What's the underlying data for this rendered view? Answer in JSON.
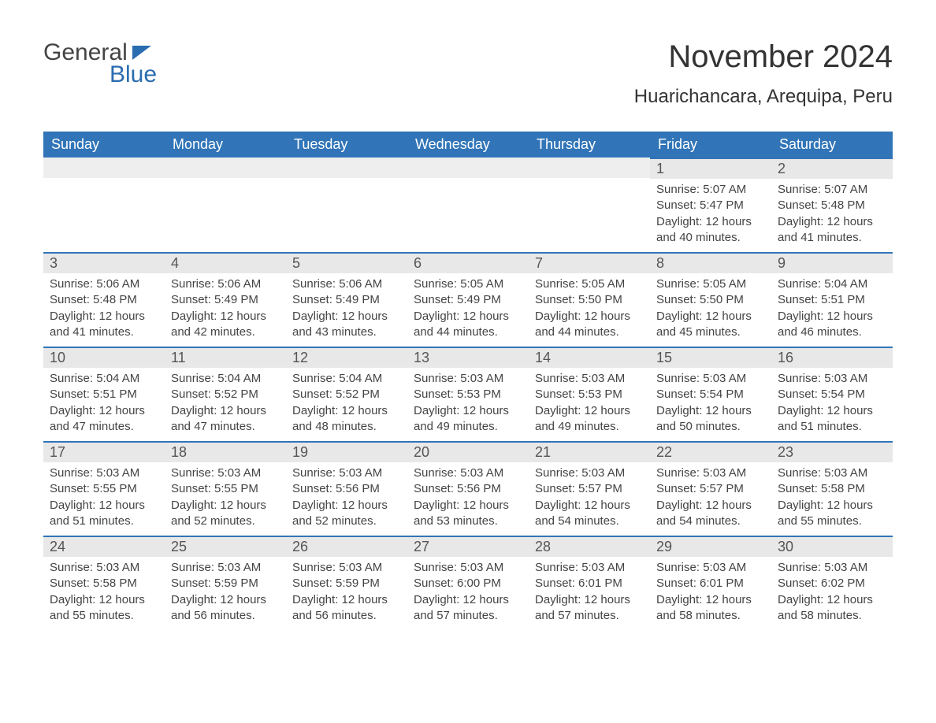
{
  "logo": {
    "text_general": "General",
    "text_blue": "Blue"
  },
  "title": "November 2024",
  "location": "Huarichancara, Arequipa, Peru",
  "colors": {
    "header_bg": "#3175b8",
    "header_text": "#ffffff",
    "day_bar_bg": "#e8e8e8",
    "day_bar_border": "#3175b8",
    "body_text": "#444444",
    "logo_blue": "#2a6cb0"
  },
  "weekdays": [
    "Sunday",
    "Monday",
    "Tuesday",
    "Wednesday",
    "Thursday",
    "Friday",
    "Saturday"
  ],
  "calendar": {
    "type": "month-grid",
    "columns": 7,
    "rows": 5,
    "weeks": [
      [
        {
          "day": null
        },
        {
          "day": null
        },
        {
          "day": null
        },
        {
          "day": null
        },
        {
          "day": null
        },
        {
          "day": "1",
          "sunrise": "Sunrise: 5:07 AM",
          "sunset": "Sunset: 5:47 PM",
          "daylight1": "Daylight: 12 hours",
          "daylight2": "and 40 minutes."
        },
        {
          "day": "2",
          "sunrise": "Sunrise: 5:07 AM",
          "sunset": "Sunset: 5:48 PM",
          "daylight1": "Daylight: 12 hours",
          "daylight2": "and 41 minutes."
        }
      ],
      [
        {
          "day": "3",
          "sunrise": "Sunrise: 5:06 AM",
          "sunset": "Sunset: 5:48 PM",
          "daylight1": "Daylight: 12 hours",
          "daylight2": "and 41 minutes."
        },
        {
          "day": "4",
          "sunrise": "Sunrise: 5:06 AM",
          "sunset": "Sunset: 5:49 PM",
          "daylight1": "Daylight: 12 hours",
          "daylight2": "and 42 minutes."
        },
        {
          "day": "5",
          "sunrise": "Sunrise: 5:06 AM",
          "sunset": "Sunset: 5:49 PM",
          "daylight1": "Daylight: 12 hours",
          "daylight2": "and 43 minutes."
        },
        {
          "day": "6",
          "sunrise": "Sunrise: 5:05 AM",
          "sunset": "Sunset: 5:49 PM",
          "daylight1": "Daylight: 12 hours",
          "daylight2": "and 44 minutes."
        },
        {
          "day": "7",
          "sunrise": "Sunrise: 5:05 AM",
          "sunset": "Sunset: 5:50 PM",
          "daylight1": "Daylight: 12 hours",
          "daylight2": "and 44 minutes."
        },
        {
          "day": "8",
          "sunrise": "Sunrise: 5:05 AM",
          "sunset": "Sunset: 5:50 PM",
          "daylight1": "Daylight: 12 hours",
          "daylight2": "and 45 minutes."
        },
        {
          "day": "9",
          "sunrise": "Sunrise: 5:04 AM",
          "sunset": "Sunset: 5:51 PM",
          "daylight1": "Daylight: 12 hours",
          "daylight2": "and 46 minutes."
        }
      ],
      [
        {
          "day": "10",
          "sunrise": "Sunrise: 5:04 AM",
          "sunset": "Sunset: 5:51 PM",
          "daylight1": "Daylight: 12 hours",
          "daylight2": "and 47 minutes."
        },
        {
          "day": "11",
          "sunrise": "Sunrise: 5:04 AM",
          "sunset": "Sunset: 5:52 PM",
          "daylight1": "Daylight: 12 hours",
          "daylight2": "and 47 minutes."
        },
        {
          "day": "12",
          "sunrise": "Sunrise: 5:04 AM",
          "sunset": "Sunset: 5:52 PM",
          "daylight1": "Daylight: 12 hours",
          "daylight2": "and 48 minutes."
        },
        {
          "day": "13",
          "sunrise": "Sunrise: 5:03 AM",
          "sunset": "Sunset: 5:53 PM",
          "daylight1": "Daylight: 12 hours",
          "daylight2": "and 49 minutes."
        },
        {
          "day": "14",
          "sunrise": "Sunrise: 5:03 AM",
          "sunset": "Sunset: 5:53 PM",
          "daylight1": "Daylight: 12 hours",
          "daylight2": "and 49 minutes."
        },
        {
          "day": "15",
          "sunrise": "Sunrise: 5:03 AM",
          "sunset": "Sunset: 5:54 PM",
          "daylight1": "Daylight: 12 hours",
          "daylight2": "and 50 minutes."
        },
        {
          "day": "16",
          "sunrise": "Sunrise: 5:03 AM",
          "sunset": "Sunset: 5:54 PM",
          "daylight1": "Daylight: 12 hours",
          "daylight2": "and 51 minutes."
        }
      ],
      [
        {
          "day": "17",
          "sunrise": "Sunrise: 5:03 AM",
          "sunset": "Sunset: 5:55 PM",
          "daylight1": "Daylight: 12 hours",
          "daylight2": "and 51 minutes."
        },
        {
          "day": "18",
          "sunrise": "Sunrise: 5:03 AM",
          "sunset": "Sunset: 5:55 PM",
          "daylight1": "Daylight: 12 hours",
          "daylight2": "and 52 minutes."
        },
        {
          "day": "19",
          "sunrise": "Sunrise: 5:03 AM",
          "sunset": "Sunset: 5:56 PM",
          "daylight1": "Daylight: 12 hours",
          "daylight2": "and 52 minutes."
        },
        {
          "day": "20",
          "sunrise": "Sunrise: 5:03 AM",
          "sunset": "Sunset: 5:56 PM",
          "daylight1": "Daylight: 12 hours",
          "daylight2": "and 53 minutes."
        },
        {
          "day": "21",
          "sunrise": "Sunrise: 5:03 AM",
          "sunset": "Sunset: 5:57 PM",
          "daylight1": "Daylight: 12 hours",
          "daylight2": "and 54 minutes."
        },
        {
          "day": "22",
          "sunrise": "Sunrise: 5:03 AM",
          "sunset": "Sunset: 5:57 PM",
          "daylight1": "Daylight: 12 hours",
          "daylight2": "and 54 minutes."
        },
        {
          "day": "23",
          "sunrise": "Sunrise: 5:03 AM",
          "sunset": "Sunset: 5:58 PM",
          "daylight1": "Daylight: 12 hours",
          "daylight2": "and 55 minutes."
        }
      ],
      [
        {
          "day": "24",
          "sunrise": "Sunrise: 5:03 AM",
          "sunset": "Sunset: 5:58 PM",
          "daylight1": "Daylight: 12 hours",
          "daylight2": "and 55 minutes."
        },
        {
          "day": "25",
          "sunrise": "Sunrise: 5:03 AM",
          "sunset": "Sunset: 5:59 PM",
          "daylight1": "Daylight: 12 hours",
          "daylight2": "and 56 minutes."
        },
        {
          "day": "26",
          "sunrise": "Sunrise: 5:03 AM",
          "sunset": "Sunset: 5:59 PM",
          "daylight1": "Daylight: 12 hours",
          "daylight2": "and 56 minutes."
        },
        {
          "day": "27",
          "sunrise": "Sunrise: 5:03 AM",
          "sunset": "Sunset: 6:00 PM",
          "daylight1": "Daylight: 12 hours",
          "daylight2": "and 57 minutes."
        },
        {
          "day": "28",
          "sunrise": "Sunrise: 5:03 AM",
          "sunset": "Sunset: 6:01 PM",
          "daylight1": "Daylight: 12 hours",
          "daylight2": "and 57 minutes."
        },
        {
          "day": "29",
          "sunrise": "Sunrise: 5:03 AM",
          "sunset": "Sunset: 6:01 PM",
          "daylight1": "Daylight: 12 hours",
          "daylight2": "and 58 minutes."
        },
        {
          "day": "30",
          "sunrise": "Sunrise: 5:03 AM",
          "sunset": "Sunset: 6:02 PM",
          "daylight1": "Daylight: 12 hours",
          "daylight2": "and 58 minutes."
        }
      ]
    ]
  }
}
